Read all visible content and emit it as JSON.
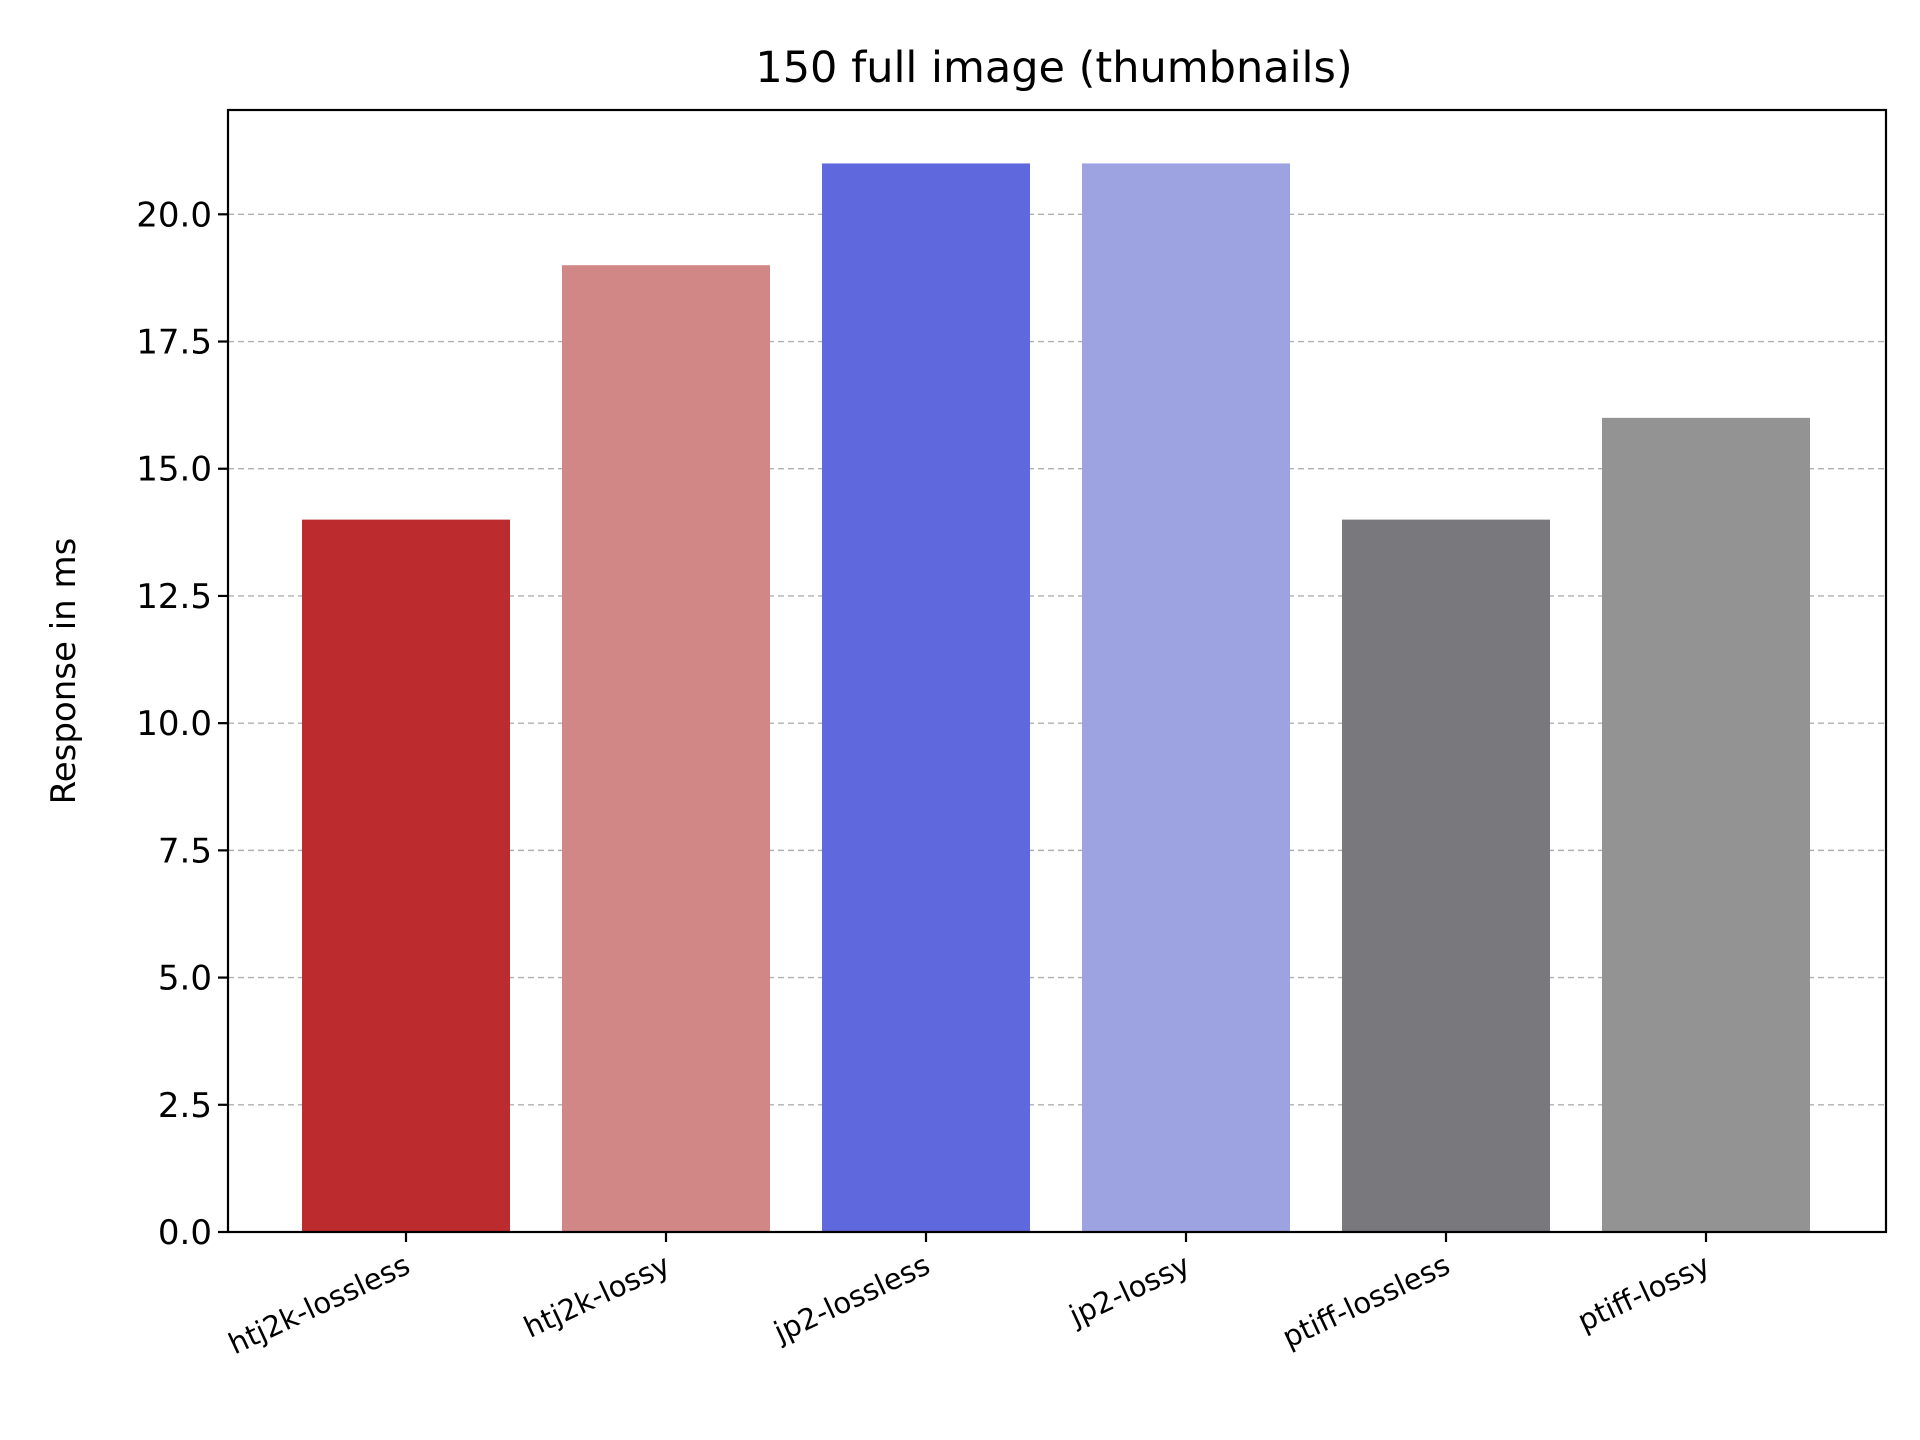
{
  "chart_data": {
    "type": "bar",
    "title": "150 full image (thumbnails)",
    "xlabel": "",
    "ylabel": "Response in ms",
    "categories": [
      "htj2k-lossless",
      "htj2k-lossy",
      "jp2-lossless",
      "jp2-lossy",
      "ptiff-lossless",
      "ptiff-lossy"
    ],
    "values": [
      14,
      19,
      21,
      21,
      14,
      16
    ],
    "colors": [
      "#bc2b2e",
      "#d28787",
      "#5f69dd",
      "#9da3e1",
      "#78787d",
      "#939394"
    ],
    "ylim": [
      0,
      22.05
    ],
    "yticks": [
      0.0,
      2.5,
      5.0,
      7.5,
      10.0,
      12.5,
      15.0,
      17.5,
      20.0
    ],
    "ytick_labels": [
      "0.0",
      "2.5",
      "5.0",
      "7.5",
      "10.0",
      "12.5",
      "15.0",
      "17.5",
      "20.0"
    ],
    "grid": "y dashed",
    "legend": "none"
  }
}
